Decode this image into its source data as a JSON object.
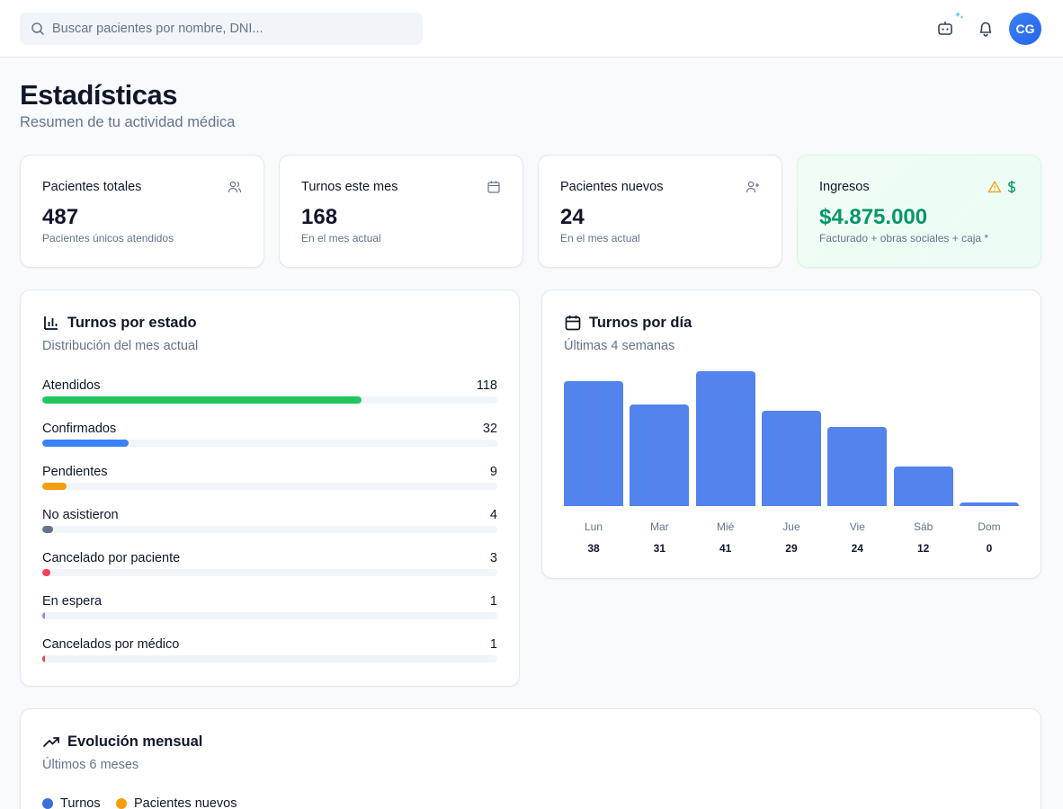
{
  "header": {
    "search_placeholder": "Buscar pacientes por nombre, DNI...",
    "avatar_initials": "CG"
  },
  "page": {
    "title": "Estadísticas",
    "subtitle": "Resumen de tu actividad médica"
  },
  "stats": [
    {
      "label": "Pacientes totales",
      "value": "487",
      "sub": "Pacientes únicos atendidos",
      "icon": "users-icon"
    },
    {
      "label": "Turnos este mes",
      "value": "168",
      "sub": "En el mes actual",
      "icon": "calendar-icon"
    },
    {
      "label": "Pacientes nuevos",
      "value": "24",
      "sub": "En el mes actual",
      "icon": "user-plus-icon"
    },
    {
      "label": "Ingresos",
      "value": "$4.875.000",
      "sub": "Facturado + obras sociales + caja *",
      "icon": "dollar-icon",
      "warning_icon": "warning-icon"
    }
  ],
  "turnos_estado": {
    "title": "Turnos por estado",
    "subtitle": "Distribución del mes actual",
    "max": 168,
    "items": [
      {
        "label": "Atendidos",
        "count": 118,
        "color": "#22c55e"
      },
      {
        "label": "Confirmados",
        "count": 32,
        "color": "#3b82f6"
      },
      {
        "label": "Pendientes",
        "count": 9,
        "color": "#f59e0b"
      },
      {
        "label": "No asistieron",
        "count": 4,
        "color": "#64748b"
      },
      {
        "label": "Cancelado por paciente",
        "count": 3,
        "color": "#f43f5e"
      },
      {
        "label": "En espera",
        "count": 1,
        "color": "#818cf8"
      },
      {
        "label": "Cancelados por médico",
        "count": 1,
        "color": "#ef4444"
      }
    ]
  },
  "turnos_dia": {
    "title": "Turnos por día",
    "subtitle": "Últimas 4 semanas"
  },
  "chart_data": {
    "type": "bar",
    "categories": [
      "Lun",
      "Mar",
      "Mié",
      "Jue",
      "Vie",
      "Sáb",
      "Dom"
    ],
    "values": [
      38,
      31,
      41,
      29,
      24,
      12,
      0
    ],
    "color": "#5383ec",
    "grid": false
  },
  "evolucion": {
    "title": "Evolución mensual",
    "subtitle": "Últimos 6 meses",
    "legend": [
      {
        "label": "Turnos",
        "color": "#3b6fd9"
      },
      {
        "label": "Pacientes nuevos",
        "color": "#f59e0b"
      }
    ]
  }
}
